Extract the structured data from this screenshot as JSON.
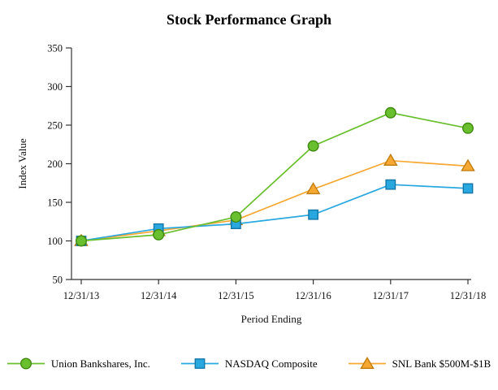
{
  "title": "Stock Performance Graph",
  "chart_data": {
    "type": "line",
    "title": "Stock Performance Graph",
    "xlabel": "Period Ending",
    "ylabel": "Index Value",
    "categories": [
      "12/31/13",
      "12/31/14",
      "12/31/15",
      "12/31/16",
      "12/31/17",
      "12/31/18"
    ],
    "ylim": [
      50,
      350
    ],
    "yticks": [
      50,
      100,
      150,
      200,
      250,
      300,
      350
    ],
    "grid": false,
    "legend_position": "bottom",
    "axis_color": "#333333",
    "series": [
      {
        "name": "Union Bankshares, Inc.",
        "marker": "circle",
        "color": "#6abf2e",
        "marker_stroke": "#3f8a10",
        "values": [
          100,
          108,
          131,
          223,
          266,
          246
        ]
      },
      {
        "name": "NASDAQ Composite",
        "marker": "square",
        "color": "#29a8e0",
        "marker_stroke": "#1577a8",
        "values": [
          100,
          116,
          122,
          134,
          173,
          168
        ]
      },
      {
        "name": "SNL Bank $500M-$1B",
        "marker": "triangle",
        "color": "#f7a833",
        "marker_stroke": "#c07d0f",
        "values": [
          100,
          113,
          127,
          167,
          204,
          197
        ]
      }
    ]
  }
}
